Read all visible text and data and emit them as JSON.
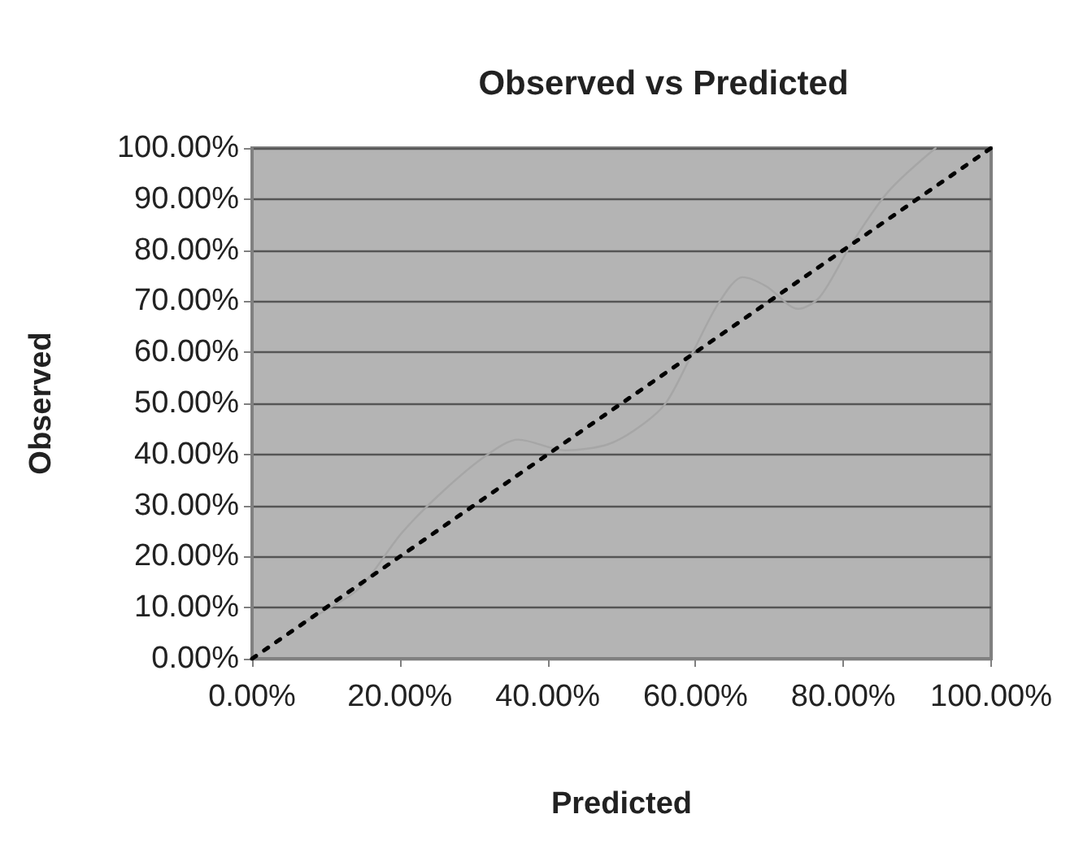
{
  "chart_data": {
    "type": "line",
    "title": "Observed vs Predicted",
    "xlabel": "Predicted",
    "ylabel": "Observed",
    "xlim": [
      0,
      100
    ],
    "ylim": [
      0,
      100
    ],
    "xticks": [
      {
        "value": 0,
        "label": "0.00%"
      },
      {
        "value": 20,
        "label": "20.00%"
      },
      {
        "value": 40,
        "label": "40.00%"
      },
      {
        "value": 60,
        "label": "60.00%"
      },
      {
        "value": 80,
        "label": "80.00%"
      },
      {
        "value": 100,
        "label": "100.00%"
      }
    ],
    "yticks": [
      {
        "value": 0,
        "label": "0.00%"
      },
      {
        "value": 10,
        "label": "10.00%"
      },
      {
        "value": 20,
        "label": "20.00%"
      },
      {
        "value": 30,
        "label": "30.00%"
      },
      {
        "value": 40,
        "label": "40.00%"
      },
      {
        "value": 50,
        "label": "50.00%"
      },
      {
        "value": 60,
        "label": "60.00%"
      },
      {
        "value": 70,
        "label": "70.00%"
      },
      {
        "value": 80,
        "label": "80.00%"
      },
      {
        "value": 90,
        "label": "90.00%"
      },
      {
        "value": 100,
        "label": "100.00%"
      }
    ],
    "grid": "y",
    "marker": "none",
    "series": [
      {
        "color": "#a6a6a6",
        "line_style": "solid",
        "x": [
          6.8,
          9.6,
          14.6,
          20.3,
          26.0,
          31.7,
          36.0,
          42.4,
          48.2,
          52.5,
          56.0,
          59.6,
          63.2,
          66.4,
          69.6,
          73.9,
          76.8,
          81.1,
          86.1,
          92.5
        ],
        "values": [
          7.1,
          9.2,
          13.9,
          24.7,
          33.0,
          39.8,
          42.9,
          40.8,
          42.0,
          45.5,
          50.1,
          59.9,
          69.8,
          74.7,
          72.9,
          68.5,
          70.8,
          81.2,
          91.5,
          100
        ]
      },
      {
        "color": "#000000",
        "line_style": "dotted",
        "x": [
          0,
          100
        ],
        "values": [
          0,
          100
        ]
      }
    ]
  }
}
